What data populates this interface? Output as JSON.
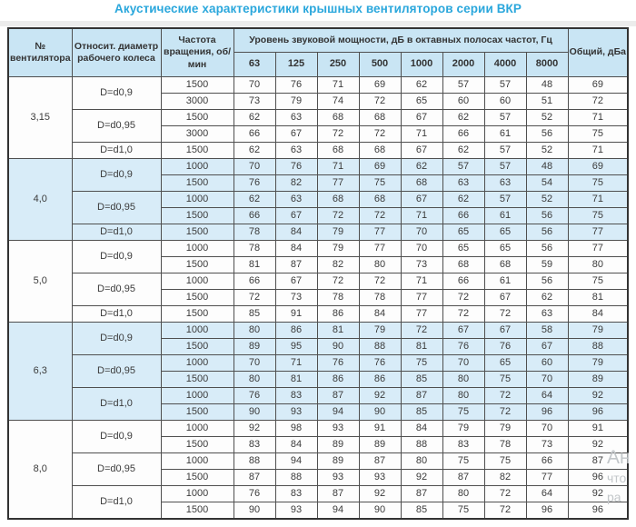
{
  "title": "Акустические характеристики крышных вентиляторов серии ВКР",
  "table": {
    "header": {
      "fan": "№ вентилятора",
      "diameter": "Относит. диаметр рабочего колеса",
      "speed": "Частота вращения, об/мин",
      "group": "Уровень звуковой мощности, дБ в октавных полосах частот, Гц",
      "total": "Общий, дБа",
      "frequencies": [
        "63",
        "125",
        "250",
        "500",
        "1000",
        "2000",
        "4000",
        "8000"
      ]
    },
    "sections": [
      {
        "fan": "3,15",
        "groups": [
          {
            "diameter": "D=d0,9",
            "rows": [
              {
                "rpm": "1500",
                "levels": [
                  70,
                  76,
                  71,
                  69,
                  62,
                  57,
                  57,
                  48
                ],
                "total": 69
              },
              {
                "rpm": "3000",
                "levels": [
                  73,
                  79,
                  74,
                  72,
                  65,
                  60,
                  60,
                  51
                ],
                "total": 72
              }
            ]
          },
          {
            "diameter": "D=d0,95",
            "rows": [
              {
                "rpm": "1500",
                "levels": [
                  62,
                  63,
                  68,
                  68,
                  67,
                  62,
                  57,
                  52
                ],
                "total": 71
              },
              {
                "rpm": "3000",
                "levels": [
                  66,
                  67,
                  72,
                  72,
                  71,
                  66,
                  61,
                  56
                ],
                "total": 75
              }
            ]
          },
          {
            "diameter": "D=d1,0",
            "rows": [
              {
                "rpm": "1500",
                "levels": [
                  62,
                  63,
                  68,
                  68,
                  67,
                  62,
                  57,
                  52
                ],
                "total": 71
              }
            ]
          }
        ]
      },
      {
        "fan": "4,0",
        "groups": [
          {
            "diameter": "D=d0,9",
            "rows": [
              {
                "rpm": "1000",
                "levels": [
                  70,
                  76,
                  71,
                  69,
                  62,
                  57,
                  57,
                  48
                ],
                "total": 69
              },
              {
                "rpm": "1500",
                "levels": [
                  76,
                  82,
                  77,
                  75,
                  68,
                  63,
                  63,
                  54
                ],
                "total": 75
              }
            ]
          },
          {
            "diameter": "D=d0,95",
            "rows": [
              {
                "rpm": "1000",
                "levels": [
                  62,
                  63,
                  68,
                  68,
                  67,
                  62,
                  57,
                  52
                ],
                "total": 71
              },
              {
                "rpm": "1500",
                "levels": [
                  66,
                  67,
                  72,
                  72,
                  71,
                  66,
                  61,
                  56
                ],
                "total": 75
              }
            ]
          },
          {
            "diameter": "D=d1,0",
            "rows": [
              {
                "rpm": "1500",
                "levels": [
                  78,
                  84,
                  79,
                  77,
                  70,
                  65,
                  65,
                  56
                ],
                "total": 77
              }
            ]
          }
        ]
      },
      {
        "fan": "5,0",
        "groups": [
          {
            "diameter": "D=d0,9",
            "rows": [
              {
                "rpm": "1000",
                "levels": [
                  78,
                  84,
                  79,
                  77,
                  70,
                  65,
                  65,
                  56
                ],
                "total": 77
              },
              {
                "rpm": "1500",
                "levels": [
                  81,
                  87,
                  82,
                  80,
                  73,
                  68,
                  68,
                  59
                ],
                "total": 80
              }
            ]
          },
          {
            "diameter": "D=d0,95",
            "rows": [
              {
                "rpm": "1000",
                "levels": [
                  66,
                  67,
                  72,
                  72,
                  71,
                  66,
                  61,
                  56
                ],
                "total": 75
              },
              {
                "rpm": "1500",
                "levels": [
                  72,
                  73,
                  78,
                  78,
                  77,
                  72,
                  67,
                  62
                ],
                "total": 81
              }
            ]
          },
          {
            "diameter": "D=d1,0",
            "rows": [
              {
                "rpm": "1500",
                "levels": [
                  85,
                  91,
                  86,
                  84,
                  77,
                  72,
                  72,
                  63
                ],
                "total": 84
              }
            ]
          }
        ]
      },
      {
        "fan": "6,3",
        "groups": [
          {
            "diameter": "D=d0,9",
            "rows": [
              {
                "rpm": "1000",
                "levels": [
                  80,
                  86,
                  81,
                  79,
                  72,
                  67,
                  67,
                  58
                ],
                "total": 79
              },
              {
                "rpm": "1500",
                "levels": [
                  89,
                  95,
                  90,
                  88,
                  81,
                  76,
                  76,
                  67
                ],
                "total": 88
              }
            ]
          },
          {
            "diameter": "D=d0,95",
            "rows": [
              {
                "rpm": "1000",
                "levels": [
                  70,
                  71,
                  76,
                  76,
                  75,
                  70,
                  65,
                  60
                ],
                "total": 79
              },
              {
                "rpm": "1500",
                "levels": [
                  80,
                  81,
                  86,
                  86,
                  85,
                  80,
                  75,
                  70
                ],
                "total": 89
              }
            ]
          },
          {
            "diameter": "D=d1,0",
            "rows": [
              {
                "rpm": "1000",
                "levels": [
                  76,
                  83,
                  87,
                  92,
                  87,
                  80,
                  72,
                  64
                ],
                "total": 92
              },
              {
                "rpm": "1500",
                "levels": [
                  90,
                  93,
                  94,
                  90,
                  85,
                  75,
                  72,
                  96
                ],
                "total": 96
              }
            ]
          }
        ]
      },
      {
        "fan": "8,0",
        "groups": [
          {
            "diameter": "D=d0,9",
            "rows": [
              {
                "rpm": "1000",
                "levels": [
                  92,
                  98,
                  93,
                  91,
                  84,
                  79,
                  79,
                  70
                ],
                "total": 91
              },
              {
                "rpm": "1500",
                "levels": [
                  83,
                  84,
                  89,
                  89,
                  88,
                  83,
                  78,
                  73
                ],
                "total": 92
              }
            ]
          },
          {
            "diameter": "D=d0,95",
            "rows": [
              {
                "rpm": "1000",
                "levels": [
                  88,
                  94,
                  89,
                  87,
                  80,
                  75,
                  75,
                  66
                ],
                "total": 87
              },
              {
                "rpm": "1500",
                "levels": [
                  87,
                  88,
                  93,
                  93,
                  92,
                  87,
                  82,
                  77
                ],
                "total": 96
              }
            ]
          },
          {
            "diameter": "D=d1,0",
            "rows": [
              {
                "rpm": "1000",
                "levels": [
                  76,
                  83,
                  87,
                  92,
                  87,
                  80,
                  72,
                  64
                ],
                "total": 92
              },
              {
                "rpm": "1500",
                "levels": [
                  90,
                  93,
                  94,
                  90,
                  85,
                  75,
                  72,
                  96
                ],
                "total": 96
              }
            ]
          }
        ]
      }
    ]
  },
  "watermark": {
    "lines": [
      "Ан",
      "что",
      "ра"
    ]
  },
  "colors": {
    "accent": "#2aa7dc",
    "header_bg": "#c9e5f4",
    "shaded_row_bg": "#d8ecf8",
    "border": "#4f4f4f"
  }
}
